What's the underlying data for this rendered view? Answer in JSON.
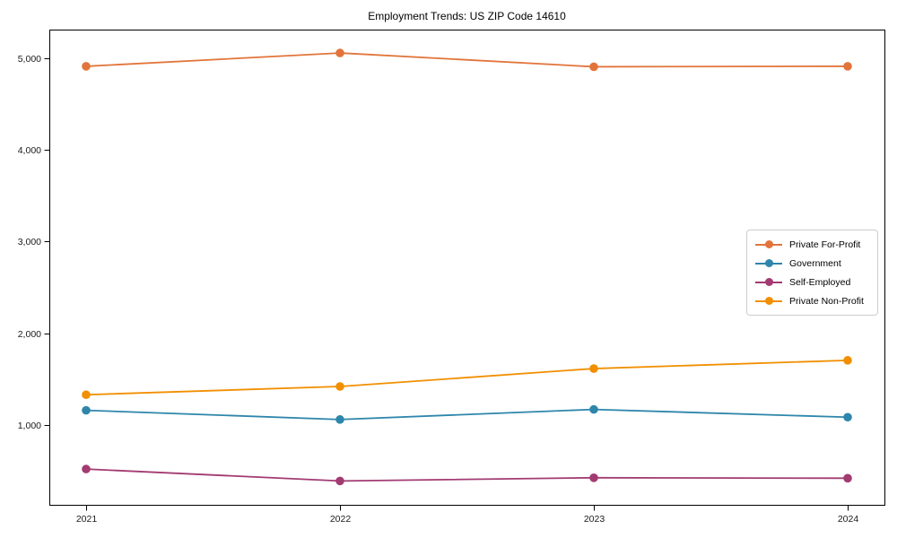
{
  "chart_data": {
    "type": "line",
    "title": "Employment Trends: US ZIP Code 14610",
    "xlabel": "",
    "ylabel": "",
    "grid": false,
    "legend_position": "center-right",
    "categories": [
      "2021",
      "2022",
      "2023",
      "2024"
    ],
    "series": [
      {
        "name": "Private For-Profit",
        "color": "#E2743B",
        "values": [
          4910,
          5055,
          4905,
          4910
        ]
      },
      {
        "name": "Government",
        "color": "#2E86AB",
        "values": [
          1160,
          1060,
          1170,
          1085
        ]
      },
      {
        "name": "Self-Employed",
        "color": "#A23B72",
        "values": [
          520,
          390,
          425,
          420
        ]
      },
      {
        "name": "Private Non-Profit",
        "color": "#F18F01",
        "values": [
          1330,
          1420,
          1615,
          1705
        ]
      }
    ],
    "yticks": [
      {
        "value": 1000,
        "label": "1,000"
      },
      {
        "value": 2000,
        "label": "2,000"
      },
      {
        "value": 3000,
        "label": "3,000"
      },
      {
        "value": 4000,
        "label": "4,000"
      },
      {
        "value": 5000,
        "label": "5,000"
      }
    ],
    "ylim": [
      130,
      5310
    ],
    "axis_color": "#000000",
    "tick_label_color": "#1a1a1a"
  }
}
